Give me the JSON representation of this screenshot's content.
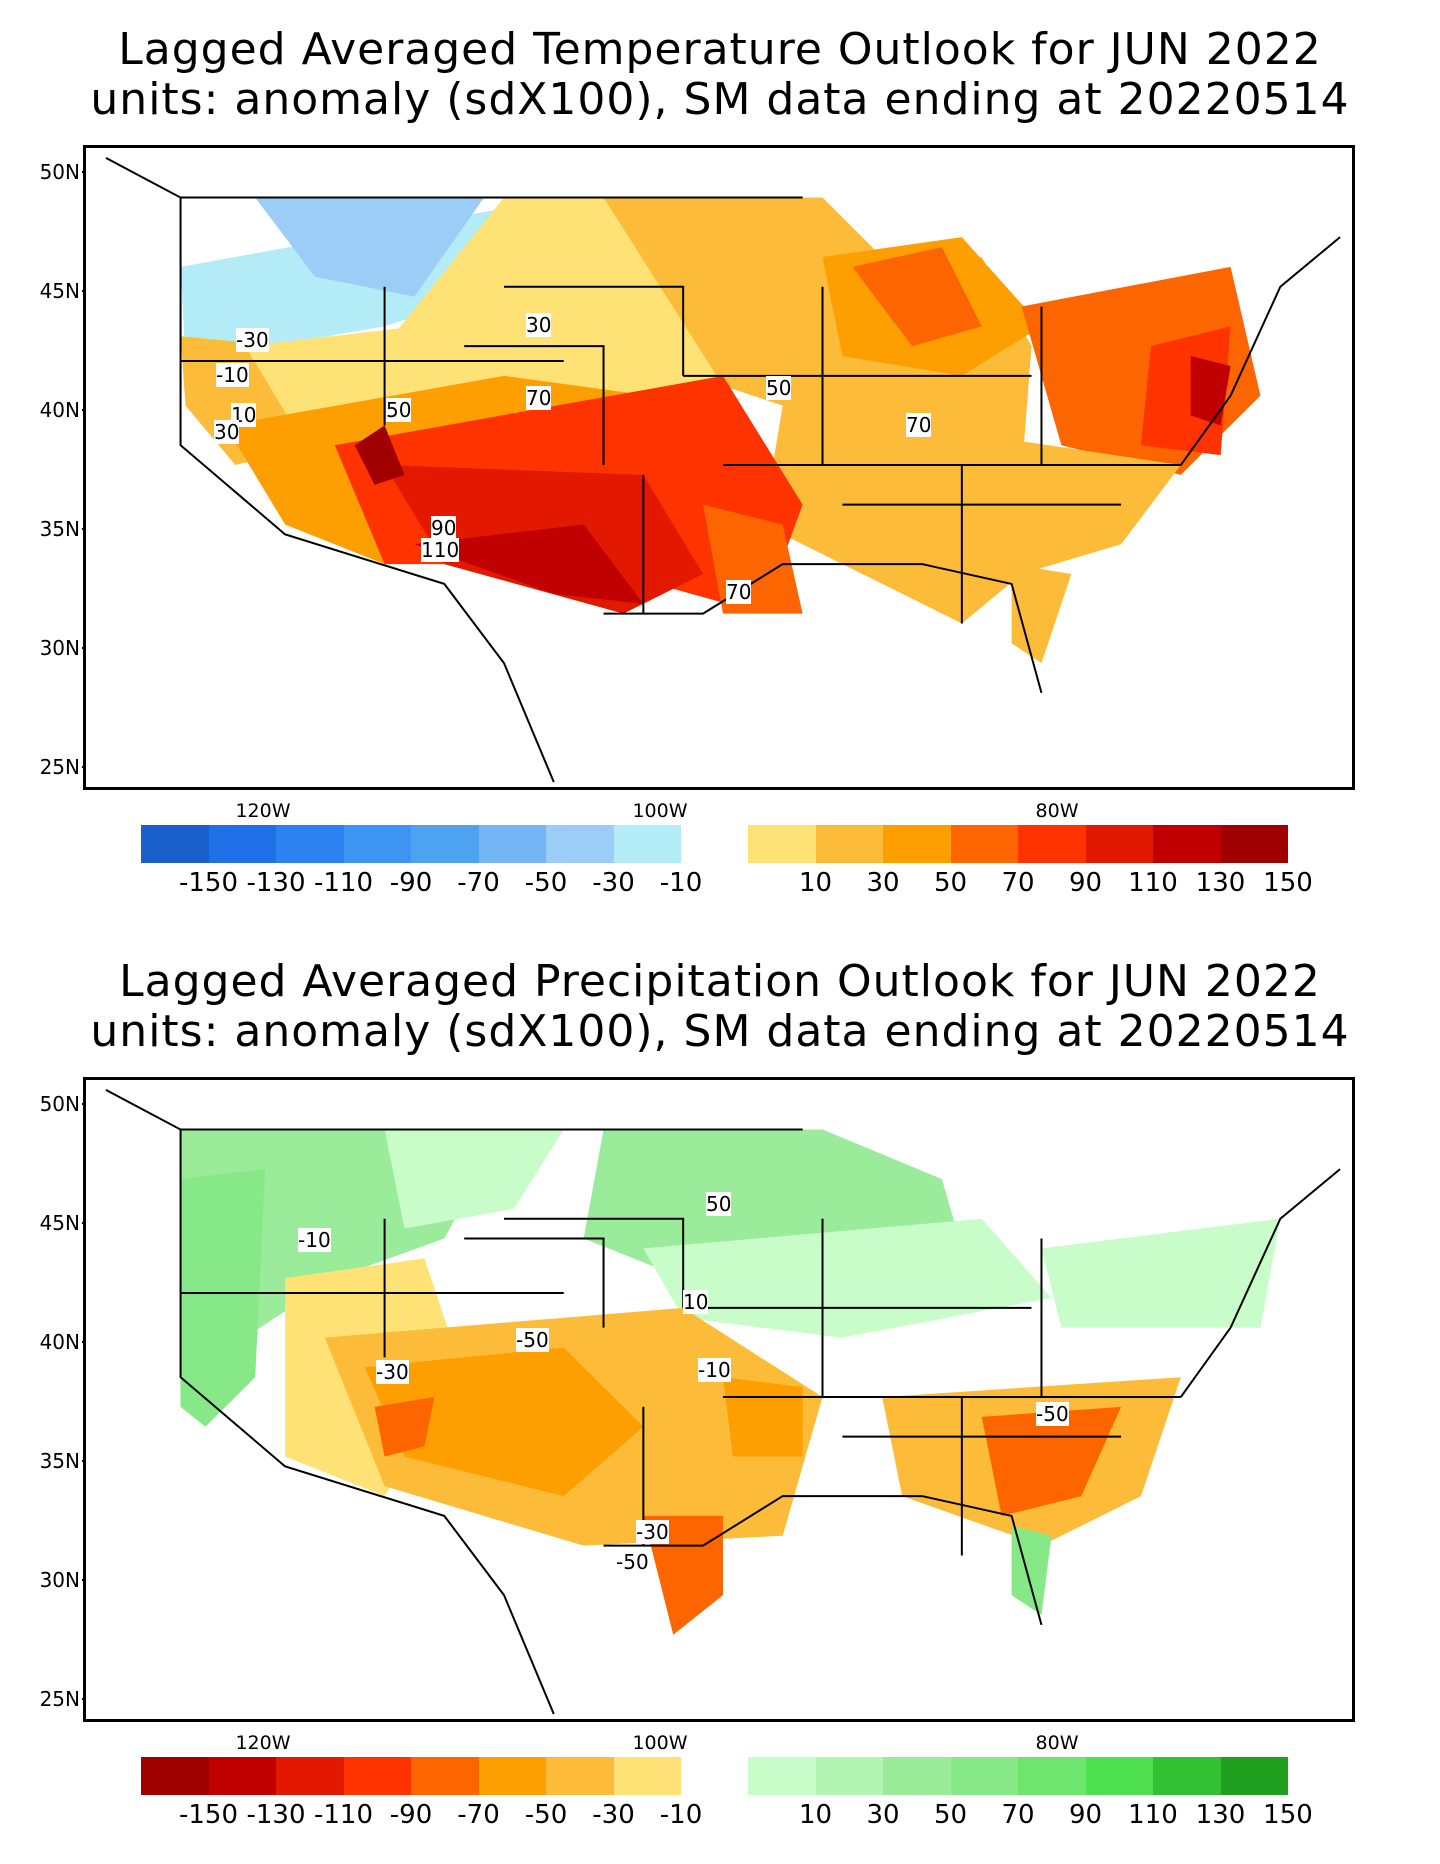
{
  "panels": [
    {
      "id": "temperature",
      "title_line1": "Lagged Averaged Temperature Outlook for JUN 2022",
      "title_line2": "units: anomaly (sdX100), SM data ending at 20220514",
      "lat_ticks": [
        "50N",
        "45N",
        "40N",
        "35N",
        "30N",
        "25N"
      ],
      "lon_ticks": [
        "120W",
        "100W",
        "80W"
      ],
      "contour_labels": [
        "-30",
        "-10",
        "10",
        "30",
        "30",
        "50",
        "70",
        "50",
        "70",
        "90",
        "110",
        "70"
      ],
      "colorbar": {
        "labels": [
          "-150",
          "-130",
          "-110",
          "-90",
          "-70",
          "-50",
          "-30",
          "-10",
          "10",
          "30",
          "50",
          "70",
          "90",
          "110",
          "130",
          "150"
        ],
        "negative_colors": [
          "#1a5fcc",
          "#1f6fe6",
          "#2b82f0",
          "#3d94f2",
          "#4ea3f0",
          "#74b6f5",
          "#9ccdf7",
          "#b3ecf7"
        ],
        "positive_colors": [
          "#fee275",
          "#fdbb3a",
          "#fd9f00",
          "#fd6500",
          "#fe3300",
          "#e21800",
          "#c00000",
          "#a00000"
        ]
      }
    },
    {
      "id": "precipitation",
      "title_line1": "Lagged Averaged Precipitation Outlook for JUN 2022",
      "title_line2": "units: anomaly (sdX100), SM data ending at 20220514",
      "lat_ticks": [
        "50N",
        "45N",
        "40N",
        "35N",
        "30N",
        "25N"
      ],
      "lon_ticks": [
        "120W",
        "100W",
        "80W"
      ],
      "contour_labels": [
        "-10",
        "50",
        "10",
        "-50",
        "-30",
        "-10",
        "-50",
        "-30",
        "-50"
      ],
      "colorbar": {
        "labels": [
          "-150",
          "-130",
          "-110",
          "-90",
          "-70",
          "-50",
          "-30",
          "-10",
          "10",
          "30",
          "50",
          "70",
          "90",
          "110",
          "130",
          "150"
        ],
        "negative_colors": [
          "#a00000",
          "#c00000",
          "#e21800",
          "#fe3300",
          "#fd6500",
          "#fd9f00",
          "#fdbb3a",
          "#fee275"
        ],
        "positive_colors": [
          "#c8fcc8",
          "#b2f4b2",
          "#9aeb9a",
          "#86e886",
          "#6ee66e",
          "#4ee04e",
          "#33c033",
          "#1ea01e"
        ]
      }
    }
  ]
}
